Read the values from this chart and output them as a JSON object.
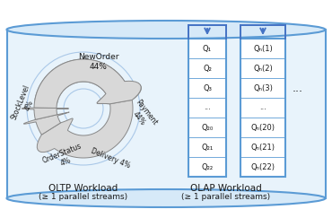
{
  "cylinder_edge": "#5b9bd5",
  "cylinder_face": "#e8f3fb",
  "cylinder_cap": "#d6e9f8",
  "table_border": "#5b9bd5",
  "table_arrow": "#4472c4",
  "text_color": "#1a1a1a",
  "arrow_face": "#d8d8d8",
  "arrow_edge": "#888888",
  "olap_col1": [
    "Q₁",
    "Q₂",
    "Q₃",
    "...",
    "Q₂₀",
    "Q₂₁",
    "Q₂₂"
  ],
  "olap_col2": [
    "Qₙ(1)",
    "Qₙ(2)",
    "Qₙ(3)",
    "...",
    "Qₙ(20)",
    "Qₙ(21)",
    "Qₙ(22)"
  ],
  "oltp_workload": "OLTP Workload",
  "oltp_streams": "(≥ 1 parallel streams)",
  "olap_workload": "OLAP Workload",
  "olap_streams": "(≥ 1 parallel streams)"
}
